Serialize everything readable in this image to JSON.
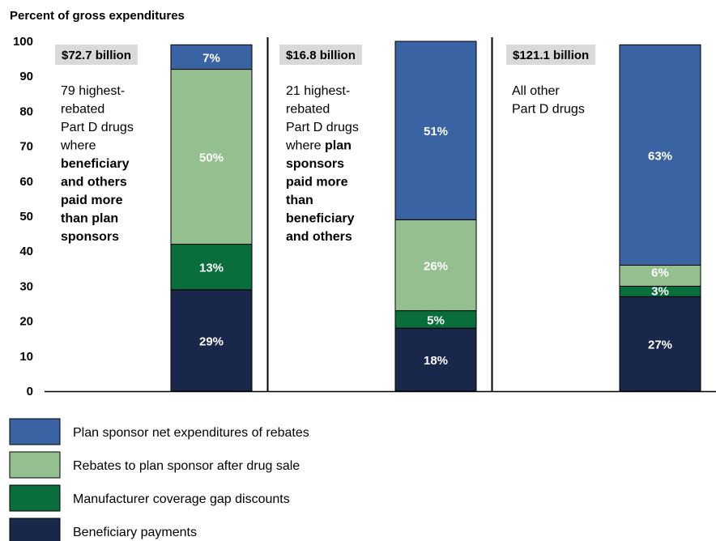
{
  "chart_data": {
    "type": "bar",
    "stacked": true,
    "y_axis_title": "Percent of gross expenditures",
    "ylim": [
      0,
      100
    ],
    "yticks": [
      0,
      10,
      20,
      30,
      40,
      50,
      60,
      70,
      80,
      90,
      100
    ],
    "grid": false,
    "legend_position": "bottom",
    "colors": {
      "plan_sponsor": "#3a63a4",
      "rebates": "#94c090",
      "manufacturer": "#0a6e3c",
      "beneficiary": "#19284a"
    },
    "series": [
      {
        "key": "beneficiary",
        "name": "Beneficiary payments",
        "values": [
          29,
          18,
          27
        ],
        "labels": [
          "29%",
          "18%",
          "27%"
        ]
      },
      {
        "key": "manufacturer",
        "name": "Manufacturer coverage gap discounts",
        "values": [
          13,
          5,
          3
        ],
        "labels": [
          "13%",
          "5%",
          "3%"
        ]
      },
      {
        "key": "rebates",
        "name": "Rebates to plan sponsor after drug sale",
        "values": [
          50,
          26,
          6
        ],
        "labels": [
          "50%",
          "26%",
          "6%"
        ]
      },
      {
        "key": "plan_sponsor",
        "name": "Plan sponsor net expenditures of rebates",
        "values": [
          7,
          51,
          63
        ],
        "labels": [
          "7%",
          "51%",
          "63%"
        ]
      }
    ],
    "panels": [
      {
        "amount": "$72.7 billion",
        "description": [
          [
            {
              "t": "79 highest-",
              "b": false
            }
          ],
          [
            {
              "t": "rebated",
              "b": false
            }
          ],
          [
            {
              "t": "Part D drugs",
              "b": false
            }
          ],
          [
            {
              "t": "where",
              "b": false
            }
          ],
          [
            {
              "t": "beneficiary",
              "b": true
            }
          ],
          [
            {
              "t": "and others",
              "b": true
            }
          ],
          [
            {
              "t": "paid more",
              "b": true
            }
          ],
          [
            {
              "t": "than plan",
              "b": true
            }
          ],
          [
            {
              "t": "sponsors",
              "b": true
            }
          ]
        ]
      },
      {
        "amount": "$16.8 billion",
        "description": [
          [
            {
              "t": "21 highest-",
              "b": false
            }
          ],
          [
            {
              "t": "rebated",
              "b": false
            }
          ],
          [
            {
              "t": "Part D drugs",
              "b": false
            }
          ],
          [
            {
              "t": "where ",
              "b": false
            },
            {
              "t": "plan",
              "b": true
            }
          ],
          [
            {
              "t": "sponsors",
              "b": true
            }
          ],
          [
            {
              "t": "paid more",
              "b": true
            }
          ],
          [
            {
              "t": "than",
              "b": true
            }
          ],
          [
            {
              "t": "beneficiary",
              "b": true
            }
          ],
          [
            {
              "t": "and others",
              "b": true
            }
          ]
        ]
      },
      {
        "amount": "$121.1 billion",
        "description": [
          [
            {
              "t": "All other",
              "b": false
            }
          ],
          [
            {
              "t": "Part D drugs",
              "b": false
            }
          ]
        ]
      }
    ],
    "legend_order": [
      "plan_sponsor",
      "rebates",
      "manufacturer",
      "beneficiary"
    ]
  }
}
